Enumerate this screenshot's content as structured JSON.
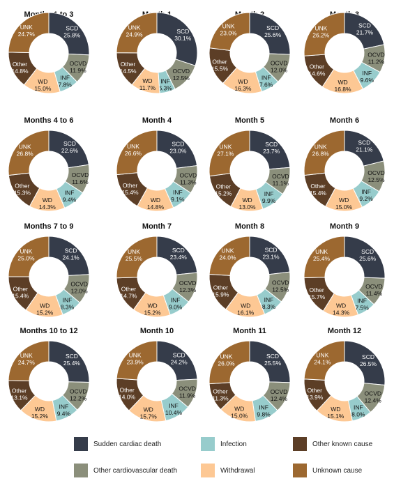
{
  "colors": {
    "SCD": "#353c4a",
    "OCVD": "#8b8f7b",
    "INF": "#97cccc",
    "WD": "#fdc894",
    "Other": "#5c3e26",
    "UNK": "#9c6830"
  },
  "legend": [
    {
      "key": "SCD",
      "label": "Sudden cardiac death"
    },
    {
      "key": "INF",
      "label": "Infection"
    },
    {
      "key": "Other",
      "label": "Other known cause"
    },
    {
      "key": "OCVD",
      "label": "Other cardiovascular death"
    },
    {
      "key": "WD",
      "label": "Withdrawal"
    },
    {
      "key": "UNK",
      "label": "Unknown cause"
    }
  ],
  "chart_data": [
    {
      "type": "pie",
      "title": "Months 1 to 3",
      "categories": [
        "SCD",
        "OCVD",
        "INF",
        "WD",
        "Other",
        "UNK"
      ],
      "values": [
        25.8,
        11.9,
        7.8,
        15.0,
        14.8,
        24.7
      ],
      "labels": [
        "25.8%",
        "11.9%",
        "7.8%",
        "15.0%",
        "14.8%",
        "24.7%"
      ]
    },
    {
      "type": "pie",
      "title": "Month 1",
      "categories": [
        "SCD",
        "OCVD",
        "INF",
        "WD",
        "Other",
        "UNK"
      ],
      "values": [
        30.1,
        12.5,
        6.3,
        11.7,
        14.5,
        24.9
      ],
      "labels": [
        "30.1%",
        "12.5%",
        "6.3%",
        "11.7%",
        "14.5%",
        "24.9%"
      ]
    },
    {
      "type": "pie",
      "title": "Month 2",
      "categories": [
        "SCD",
        "OCVD",
        "INF",
        "WD",
        "Other",
        "UNK"
      ],
      "values": [
        25.6,
        12.0,
        7.6,
        16.3,
        15.5,
        23.0
      ],
      "labels": [
        "25.6%",
        "12.0%",
        "7.6%",
        "16.3%",
        "15.5%",
        "23.0%"
      ]
    },
    {
      "type": "pie",
      "title": "Month 3",
      "categories": [
        "SCD",
        "OCVD",
        "INF",
        "WD",
        "Other",
        "UNK"
      ],
      "values": [
        21.7,
        11.2,
        9.6,
        16.8,
        14.6,
        26.2
      ],
      "labels": [
        "21.7%",
        "11.2%",
        "9.6%",
        "16.8%",
        "14.6%",
        "26.2%"
      ]
    },
    {
      "type": "pie",
      "title": "Months 4 to 6",
      "categories": [
        "SCD",
        "OCVD",
        "INF",
        "WD",
        "Other",
        "UNK"
      ],
      "values": [
        22.6,
        11.6,
        9.4,
        14.3,
        15.3,
        26.8
      ],
      "labels": [
        "22.6%",
        "11.6%",
        "9.4%",
        "14.3%",
        "15.3%",
        "26.8%"
      ]
    },
    {
      "type": "pie",
      "title": "Month 4",
      "categories": [
        "SCD",
        "OCVD",
        "INF",
        "WD",
        "Other",
        "UNK"
      ],
      "values": [
        23.0,
        11.3,
        9.1,
        14.8,
        15.4,
        26.6
      ],
      "labels": [
        "23.0%",
        "11.3%",
        "9.1%",
        "14.8%",
        "15.4%",
        "26.6%"
      ]
    },
    {
      "type": "pie",
      "title": "Month 5",
      "categories": [
        "SCD",
        "OCVD",
        "INF",
        "WD",
        "Other",
        "UNK"
      ],
      "values": [
        23.7,
        11.1,
        9.9,
        13.0,
        15.2,
        27.1
      ],
      "labels": [
        "23.7%",
        "11.1%",
        "9.9%",
        "13.0%",
        "15.2%",
        "27.1%"
      ]
    },
    {
      "type": "pie",
      "title": "Month 6",
      "categories": [
        "SCD",
        "OCVD",
        "INF",
        "WD",
        "Other",
        "UNK"
      ],
      "values": [
        21.1,
        12.5,
        9.2,
        15.0,
        15.4,
        26.8
      ],
      "labels": [
        "21.1%",
        "12.5%",
        "9.2%",
        "15.0%",
        "15.4%",
        "26.8%"
      ]
    },
    {
      "type": "pie",
      "title": "Months 7 to 9",
      "categories": [
        "SCD",
        "OCVD",
        "INF",
        "WD",
        "Other",
        "UNK"
      ],
      "values": [
        24.1,
        12.0,
        8.3,
        15.2,
        15.4,
        25.0
      ],
      "labels": [
        "24.1%",
        "12.0%",
        "8.3%",
        "15.2%",
        "15.4%",
        "25.0%"
      ]
    },
    {
      "type": "pie",
      "title": "Month 7",
      "categories": [
        "SCD",
        "OCVD",
        "INF",
        "WD",
        "Other",
        "UNK"
      ],
      "values": [
        23.4,
        12.3,
        9.0,
        15.2,
        14.7,
        25.5
      ],
      "labels": [
        "23.4%",
        "12.3%",
        "9.0%",
        "15.2%",
        "14.7%",
        "25.5%"
      ]
    },
    {
      "type": "pie",
      "title": "Month 8",
      "categories": [
        "SCD",
        "OCVD",
        "INF",
        "WD",
        "Other",
        "UNK"
      ],
      "values": [
        23.1,
        12.5,
        8.3,
        16.1,
        15.9,
        24.0
      ],
      "labels": [
        "23.1%",
        "12.5%",
        "8.3%",
        "16.1%",
        "15.9%",
        "24.0%"
      ]
    },
    {
      "type": "pie",
      "title": "Month 9",
      "categories": [
        "SCD",
        "OCVD",
        "INF",
        "WD",
        "Other",
        "UNK"
      ],
      "values": [
        25.6,
        11.4,
        7.5,
        14.3,
        15.7,
        25.4
      ],
      "labels": [
        "25.6%",
        "11.4%",
        "7.5%",
        "14.3%",
        "15.7%",
        "25.4%"
      ]
    },
    {
      "type": "pie",
      "title": "Months 10 to 12",
      "categories": [
        "SCD",
        "OCVD",
        "INF",
        "WD",
        "Other",
        "UNK"
      ],
      "values": [
        25.4,
        12.2,
        9.4,
        15.2,
        13.1,
        24.7
      ],
      "labels": [
        "25.4%",
        "12.2%",
        "9.4%",
        "15.2%",
        "13.1%",
        "24.7%"
      ]
    },
    {
      "type": "pie",
      "title": "Month 10",
      "categories": [
        "SCD",
        "OCVD",
        "INF",
        "WD",
        "Other",
        "UNK"
      ],
      "values": [
        24.2,
        11.9,
        10.4,
        15.7,
        14.0,
        23.9
      ],
      "labels": [
        "24.2%",
        "11.9%",
        "10.4%",
        "15.7%",
        "14.0%",
        "23.9%"
      ]
    },
    {
      "type": "pie",
      "title": "Month 11",
      "categories": [
        "SCD",
        "OCVD",
        "INF",
        "WD",
        "Other",
        "UNK"
      ],
      "values": [
        25.5,
        12.4,
        9.8,
        15.0,
        11.3,
        26.0
      ],
      "labels": [
        "25.5%",
        "12.4%",
        "9.8%",
        "15.0%",
        "11.3%",
        "26.0%"
      ]
    },
    {
      "type": "pie",
      "title": "Month 12",
      "categories": [
        "SCD",
        "OCVD",
        "INF",
        "WD",
        "Other",
        "UNK"
      ],
      "values": [
        26.5,
        12.4,
        8.0,
        15.1,
        13.9,
        24.1
      ],
      "labels": [
        "26.5%",
        "12.4%",
        "8.0%",
        "15.1%",
        "13.9%",
        "24.1%"
      ]
    }
  ]
}
